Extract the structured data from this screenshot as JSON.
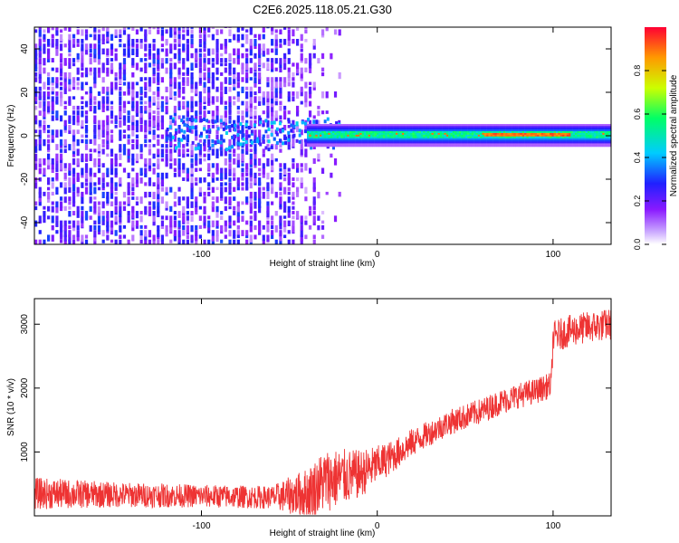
{
  "figure": {
    "title": "C2E6.2025.118.05.21.G30"
  },
  "colors": {
    "snr_line": "#ee3333",
    "axis": "#000000",
    "background": "#ffffff"
  },
  "chart_data": [
    {
      "type": "heatmap",
      "title": "C2E6.2025.118.05.21.G30",
      "xlabel": "Height of straight line (km)",
      "ylabel": "Frequency (Hz)",
      "xlim": [
        -195,
        133
      ],
      "ylim": [
        -50,
        50
      ],
      "xticks": [
        -100,
        0,
        100
      ],
      "xtick_labels": [
        "-100",
        "0",
        "100"
      ],
      "yticks": [
        -40,
        -20,
        0,
        20,
        40
      ],
      "ytick_labels": [
        "-40",
        "-20",
        "0",
        "20",
        "40"
      ],
      "colorbar": {
        "label": "Normalized spectral amplitude",
        "range": [
          0,
          1
        ],
        "ticks": [
          0.0,
          0.2,
          0.4,
          0.6,
          0.8
        ],
        "tick_labels": [
          "0.0",
          "0.2",
          "0.4",
          "0.6",
          "0.8"
        ],
        "colormap": [
          "#ffffff",
          "#8a1aff",
          "#2020ff",
          "#00ccff",
          "#00ff66",
          "#ccff00",
          "#ff9900",
          "#ff0033"
        ]
      },
      "features": [
        {
          "description": "diffuse noise",
          "x_range": [
            -195,
            -20
          ],
          "y_range": [
            -50,
            50
          ],
          "amplitude": 0.2
        },
        {
          "description": "signal band",
          "x_range": [
            -40,
            133
          ],
          "y_center": 0,
          "y_halfwidth": 3,
          "amplitude_range": [
            0.4,
            1.0
          ]
        }
      ],
      "grid": false
    },
    {
      "type": "line",
      "xlabel": "Height of straight line (km)",
      "ylabel": "SNR (10 * v/v)",
      "xlim": [
        -195,
        133
      ],
      "ylim": [
        0,
        3400
      ],
      "xticks": [
        -100,
        0,
        100
      ],
      "xtick_labels": [
        "-100",
        "0",
        "100"
      ],
      "yticks": [
        1000,
        2000,
        3000
      ],
      "ytick_labels": [
        "1000",
        "2000",
        "3000"
      ],
      "series": [
        {
          "color": "#ee3333",
          "x": [
            -195,
            -150,
            -100,
            -60,
            -40,
            -30,
            -20,
            -10,
            0,
            10,
            20,
            30,
            40,
            50,
            60,
            70,
            80,
            90,
            99,
            100,
            110,
            120,
            133
          ],
          "y": [
            350,
            330,
            310,
            290,
            350,
            550,
            600,
            650,
            800,
            950,
            1150,
            1300,
            1450,
            1550,
            1650,
            1780,
            1880,
            1950,
            2050,
            2800,
            2900,
            2950,
            3000
          ],
          "noise_amplitude": [
            250,
            200,
            180,
            180,
            400,
            500,
            450,
            380,
            300,
            250,
            220,
            200,
            200,
            200,
            200,
            200,
            200,
            200,
            200,
            250,
            250,
            250,
            250
          ]
        }
      ],
      "grid": false
    }
  ]
}
